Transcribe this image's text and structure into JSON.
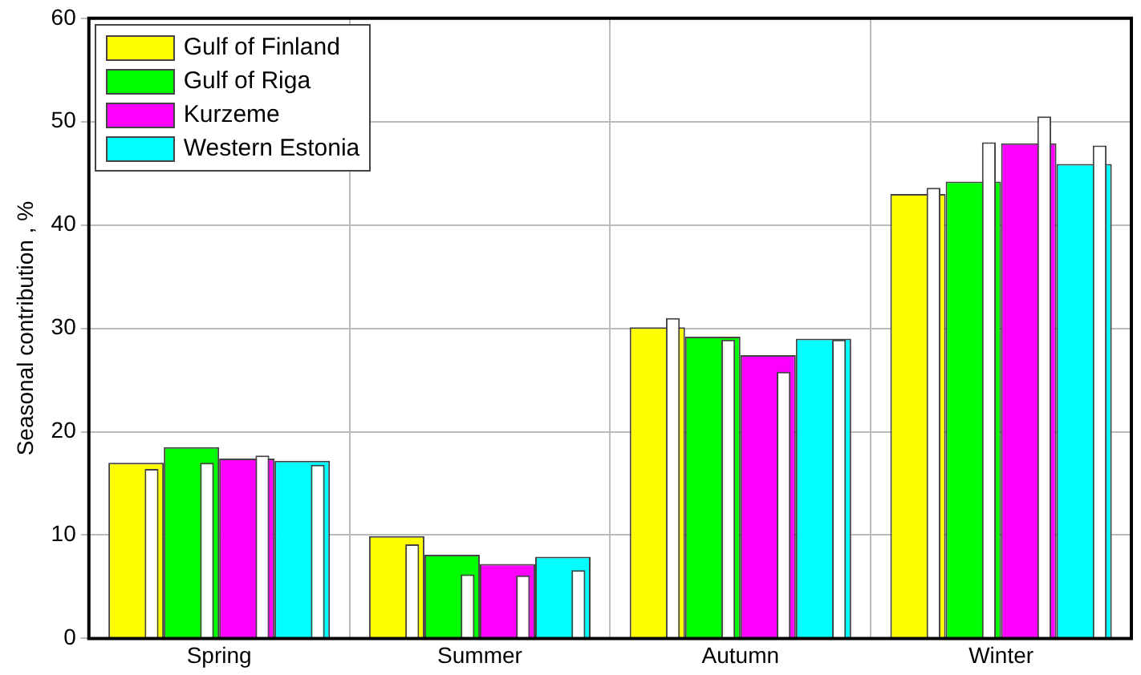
{
  "chart_data": {
    "type": "bar",
    "ylabel": "Seasonal contribution , %",
    "categories": [
      "Spring",
      "Summer",
      "Autumn",
      "Winter"
    ],
    "series": [
      {
        "name": "Gulf of Finland",
        "color": "#ffff00",
        "values": [
          17.0,
          9.9,
          30.1,
          43.0
        ]
      },
      {
        "name": "Gulf of Riga",
        "color": "#00ff00",
        "values": [
          18.5,
          8.1,
          29.2,
          44.2
        ]
      },
      {
        "name": "Kurzeme",
        "color": "#ff00ff",
        "values": [
          17.4,
          7.2,
          27.4,
          47.9
        ]
      },
      {
        "name": "Western Estonia",
        "color": "#00ffff",
        "values": [
          17.2,
          7.9,
          29.0,
          45.9
        ]
      },
      {
        "color": "#ffffff",
        "values": [
          16.4,
          9.1,
          31.0,
          43.6
        ]
      },
      {
        "color": "#ffffff",
        "values": [
          17.0,
          6.2,
          28.9,
          48.0
        ]
      },
      {
        "color": "#ffffff",
        "values": [
          17.7,
          6.1,
          25.8,
          50.5
        ]
      },
      {
        "color": "#ffffff",
        "values": [
          16.8,
          6.6,
          28.9,
          47.7
        ]
      }
    ],
    "ylim": [
      0,
      60
    ],
    "yticks": [
      0,
      10,
      20,
      30,
      40,
      50,
      60
    ],
    "grid": true,
    "legend": "top left"
  }
}
